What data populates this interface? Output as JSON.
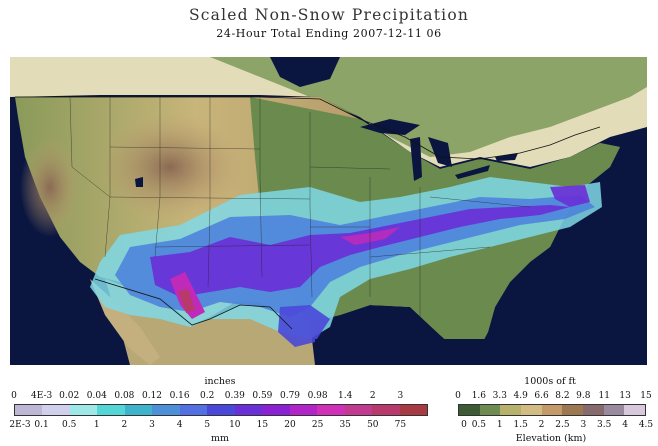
{
  "title": "Scaled Non-Snow Precipitation",
  "subtitle": "24-Hour Total Ending 2007-12-11 06",
  "precip_legend": {
    "top_unit": "inches",
    "bottom_unit": "mm",
    "top_ticks": [
      "0",
      "4E-3",
      "0.02",
      "0.04",
      "0.08",
      "0.12",
      "0.16",
      "0.2",
      "0.39",
      "0.59",
      "0.79",
      "0.98",
      "1.4",
      "2",
      "3"
    ],
    "bottom_ticks": [
      "2E-3",
      "0.1",
      "0.5",
      "1",
      "2",
      "3",
      "4",
      "5",
      "10",
      "15",
      "20",
      "25",
      "35",
      "50",
      "75"
    ],
    "colors": [
      "#bdb6d4",
      "#d0d0ec",
      "#9fe8e8",
      "#55d6d6",
      "#3fb2cc",
      "#4d8fd8",
      "#5370e2",
      "#4a48d8",
      "#6a2fd6",
      "#8a22d4",
      "#b024c8",
      "#d030b8",
      "#c03a90",
      "#b83a6c",
      "#a83a44"
    ]
  },
  "elev_legend": {
    "top_unit": "1000s of ft",
    "bottom_unit": "Elevation (km)",
    "top_ticks": [
      "0",
      "1.6",
      "3.3",
      "4.9",
      "6.6",
      "8.2",
      "9.8",
      "11",
      "13",
      "15"
    ],
    "bottom_ticks": [
      "0",
      "0.5",
      "1",
      "1.5",
      "2",
      "2.5",
      "3",
      "3.5",
      "4",
      "4.5"
    ],
    "colors": [
      "#3c5a34",
      "#6e8c52",
      "#b6b26c",
      "#d2bc84",
      "#c49a6a",
      "#9c7852",
      "#866a6c",
      "#9a8aa0",
      "#d8c8dc"
    ]
  },
  "map": {
    "ocean_color": "#0b1640",
    "lakes": [
      "Lake Superior",
      "Lake Michigan",
      "Lake Huron",
      "Lake Erie",
      "Lake Ontario",
      "Great Salt Lake"
    ]
  }
}
